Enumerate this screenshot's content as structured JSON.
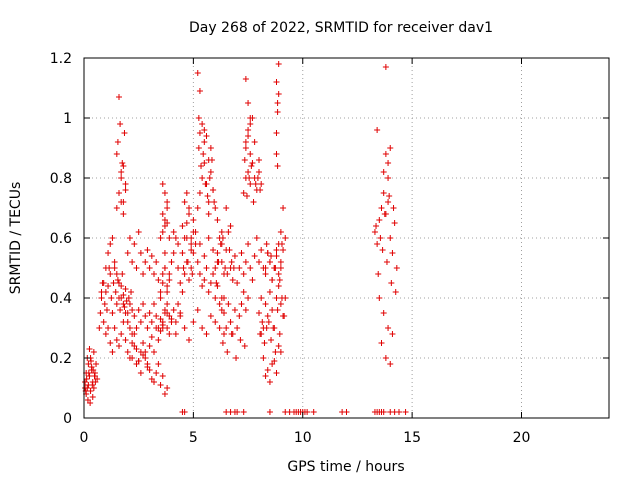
{
  "chart_data": {
    "type": "scatter",
    "title": "Day 268 of 2022, SRMTID for receiver dav1",
    "xlabel": "GPS time / hours",
    "ylabel": "SRMTID / TECUs",
    "xlim": [
      0,
      24
    ],
    "ylim": [
      0,
      1.2
    ],
    "xticks": [
      0,
      5,
      10,
      15,
      20
    ],
    "xtick_labels": [
      "0",
      "5",
      "10",
      "15",
      "20"
    ],
    "yticks": [
      0,
      0.2,
      0.4,
      0.6,
      0.8,
      1.0,
      1.2
    ],
    "ytick_labels": [
      "0",
      "0.2",
      "0.4",
      "0.6",
      "0.8",
      "1",
      "1.2"
    ],
    "grid": true,
    "marker": "plus",
    "color": "#e00000",
    "series": [
      {
        "name": "SRMTID",
        "x": [
          0.05,
          0.1,
          0.15,
          0.2,
          0.25,
          0.3,
          0.35,
          0.4,
          0.45,
          0.5,
          0.55,
          0.6,
          0.1,
          0.2,
          0.3,
          0.4,
          0.5,
          0.15,
          0.25,
          0.35,
          0.45,
          0.05,
          0.12,
          0.22,
          0.32,
          0.42,
          0.52,
          0.08,
          0.18,
          0.28,
          0.38,
          0.48,
          0.7,
          0.75,
          0.8,
          0.85,
          0.9,
          0.95,
          1.0,
          1.05,
          1.1,
          1.15,
          1.2,
          1.25,
          1.3,
          1.35,
          1.4,
          1.45,
          1.5,
          1.55,
          1.6,
          1.65,
          1.7,
          1.75,
          1.8,
          1.85,
          1.9,
          1.95,
          2.0,
          2.05,
          2.1,
          2.15,
          2.2,
          0.8,
          0.9,
          1.0,
          1.1,
          1.2,
          1.3,
          1.4,
          1.5,
          1.6,
          1.7,
          1.8,
          1.9,
          2.0,
          2.1,
          2.2,
          2.3,
          2.4,
          2.5,
          2.6,
          2.7,
          2.8,
          2.9,
          3.0,
          3.1,
          3.2,
          3.3,
          3.4,
          3.5,
          3.6,
          3.7,
          3.8,
          3.9,
          1.0,
          1.1,
          1.2,
          1.3,
          1.4,
          1.5,
          1.6,
          1.7,
          1.8,
          1.9,
          2.0,
          2.1,
          2.2,
          2.3,
          2.4,
          2.5,
          2.6,
          2.7,
          2.8,
          2.9,
          3.0,
          3.1,
          3.2,
          3.3,
          3.4,
          3.5,
          3.6,
          3.7,
          3.8,
          3.9,
          4.0,
          4.1,
          4.2,
          4.3,
          4.4,
          1.5,
          1.6,
          1.7,
          1.8,
          1.9,
          1.5,
          1.7,
          1.8,
          1.9,
          1.55,
          1.65,
          1.75,
          1.85,
          1.6,
          1.8,
          1.7,
          2.0,
          2.1,
          2.2,
          2.3,
          2.4,
          2.5,
          2.6,
          2.7,
          2.8,
          2.9,
          3.0,
          3.1,
          3.2,
          3.3,
          3.4,
          3.5,
          3.6,
          3.7,
          3.8,
          3.9,
          2.2,
          2.4,
          2.6,
          2.8,
          3.0,
          3.2,
          3.4,
          3.6,
          3.8,
          2.3,
          2.5,
          2.7,
          2.9,
          3.1,
          3.3,
          3.5,
          3.7,
          3.5,
          3.6,
          3.7,
          3.8,
          3.9,
          4.0,
          4.1,
          4.2,
          4.3,
          4.4,
          4.5,
          4.6,
          4.7,
          4.8,
          4.9,
          5.0,
          5.1,
          5.2,
          5.3,
          5.4,
          5.5,
          5.6,
          5.7,
          5.8,
          5.9,
          6.0,
          6.1,
          6.2,
          6.3,
          6.4,
          3.6,
          3.8,
          4.0,
          4.2,
          4.4,
          4.6,
          4.8,
          5.0,
          5.2,
          5.4,
          5.6,
          5.8,
          6.0,
          6.2,
          6.4,
          3.7,
          3.9,
          4.1,
          4.3,
          4.5,
          4.7,
          4.9,
          5.1,
          5.3,
          5.5,
          5.7,
          5.9,
          6.1,
          6.3,
          3.6,
          3.7,
          3.8,
          3.7,
          3.6,
          3.8,
          3.7,
          3.5,
          3.6,
          3.8,
          4.5,
          4.6,
          4.7,
          4.8,
          4.9,
          5.0,
          4.6,
          4.8,
          5.0,
          4.7,
          4.9,
          4.55,
          4.75,
          4.95,
          5.2,
          5.3,
          5.4,
          5.5,
          5.6,
          5.7,
          5.8,
          5.9,
          6.0,
          5.25,
          5.35,
          5.45,
          5.55,
          5.65,
          5.75,
          5.85,
          5.95,
          5.3,
          5.5,
          5.7,
          5.9,
          5.2,
          5.3,
          5.25,
          5.4,
          5.6,
          5.8,
          5.5,
          5.7,
          6.0,
          6.1,
          6.2,
          6.3,
          6.4,
          6.5,
          6.6,
          6.7,
          6.8,
          6.9,
          6.05,
          6.15,
          6.25,
          6.35,
          6.45,
          6.55,
          6.65,
          6.75,
          6.85,
          6.1,
          6.3,
          6.5,
          6.7,
          6.3,
          6.4,
          6.5,
          6.6,
          6.7,
          6.8,
          6.9,
          7.0,
          7.1,
          7.2,
          7.3,
          7.4,
          7.5,
          6.35,
          6.55,
          6.75,
          6.95,
          7.15,
          7.35,
          7.0,
          7.1,
          7.2,
          7.3,
          7.4,
          7.5,
          7.6,
          7.7,
          7.8,
          7.9,
          8.0,
          8.1,
          8.2,
          8.3,
          8.4,
          8.5,
          8.6,
          8.7,
          8.8,
          8.9,
          9.0,
          9.1,
          9.2,
          7.3,
          7.4,
          7.5,
          7.6,
          7.7,
          7.8,
          7.9,
          8.0,
          8.1,
          7.35,
          7.45,
          7.55,
          7.65,
          7.75,
          7.85,
          7.95,
          8.05,
          7.4,
          7.6,
          7.8,
          8.0,
          7.4,
          7.5,
          7.6,
          7.5,
          7.4,
          7.6,
          7.7,
          7.5,
          8.0,
          8.1,
          8.2,
          8.3,
          8.4,
          8.5,
          8.6,
          8.7,
          8.8,
          8.9,
          9.0,
          9.1,
          9.2,
          8.05,
          8.25,
          8.45,
          8.65,
          8.85,
          9.05,
          8.15,
          8.35,
          8.55,
          8.75,
          8.95,
          9.15,
          8.3,
          8.4,
          8.5,
          8.6,
          8.7,
          8.8,
          8.9,
          9.0,
          8.35,
          8.55,
          8.75,
          8.95,
          8.2,
          8.4,
          8.6,
          8.8,
          9.0,
          8.3,
          8.5,
          8.7,
          8.9,
          8.1,
          8.8,
          8.85,
          8.9,
          8.8,
          8.85,
          8.9,
          8.8,
          8.85,
          9.0,
          9.05,
          9.1,
          13.3,
          13.4,
          13.5,
          13.6,
          13.7,
          13.8,
          13.9,
          14.0,
          14.1,
          14.2,
          14.3,
          13.35,
          13.55,
          13.75,
          13.95,
          14.15,
          13.45,
          13.65,
          13.85,
          14.05,
          14.25,
          13.5,
          13.7,
          13.9,
          14.1,
          13.6,
          13.8,
          14.0,
          13.8,
          13.9,
          14.0,
          13.7,
          13.9,
          13.4,
          13.8,
          4.5,
          4.6,
          6.5,
          6.7,
          6.9,
          7.0,
          7.3,
          8.5,
          9.2,
          9.4,
          9.6,
          9.7,
          9.8,
          9.9,
          10.0,
          10.1,
          10.2,
          10.5,
          11.8,
          12.0,
          13.3,
          13.4,
          13.5,
          13.6,
          13.7,
          14.0,
          14.2,
          14.4,
          14.7
        ],
        "y": [
          0.12,
          0.15,
          0.1,
          0.18,
          0.14,
          0.2,
          0.16,
          0.12,
          0.22,
          0.15,
          0.18,
          0.13,
          0.08,
          0.11,
          0.09,
          0.07,
          0.14,
          0.2,
          0.23,
          0.17,
          0.1,
          0.1,
          0.13,
          0.15,
          0.19,
          0.16,
          0.12,
          0.09,
          0.06,
          0.05,
          0.11,
          0.14,
          0.3,
          0.35,
          0.4,
          0.45,
          0.32,
          0.38,
          0.42,
          0.36,
          0.44,
          0.5,
          0.48,
          0.4,
          0.35,
          0.45,
          0.5,
          0.42,
          0.38,
          0.46,
          0.4,
          0.36,
          0.44,
          0.48,
          0.41,
          0.37,
          0.43,
          0.39,
          0.35,
          0.4,
          0.38,
          0.42,
          0.36,
          0.42,
          0.45,
          0.5,
          0.55,
          0.58,
          0.6,
          0.52,
          0.48,
          0.45,
          0.4,
          0.38,
          0.35,
          0.32,
          0.3,
          0.28,
          0.34,
          0.3,
          0.36,
          0.32,
          0.38,
          0.34,
          0.3,
          0.35,
          0.32,
          0.38,
          0.34,
          0.3,
          0.33,
          0.31,
          0.36,
          0.38,
          0.34,
          0.28,
          0.3,
          0.25,
          0.22,
          0.3,
          0.26,
          0.24,
          0.28,
          0.32,
          0.26,
          0.22,
          0.2,
          0.25,
          0.28,
          0.23,
          0.19,
          0.22,
          0.25,
          0.2,
          0.18,
          0.24,
          0.27,
          0.22,
          0.3,
          0.26,
          0.29,
          0.32,
          0.35,
          0.3,
          0.28,
          0.33,
          0.36,
          0.32,
          0.38,
          0.35,
          0.7,
          0.75,
          0.8,
          0.72,
          0.78,
          0.88,
          0.82,
          0.68,
          0.76,
          0.92,
          0.98,
          0.85,
          0.95,
          1.07,
          0.84,
          0.72,
          0.55,
          0.6,
          0.52,
          0.58,
          0.5,
          0.62,
          0.55,
          0.48,
          0.52,
          0.56,
          0.5,
          0.54,
          0.48,
          0.52,
          0.46,
          0.42,
          0.48,
          0.5,
          0.44,
          0.46,
          0.2,
          0.18,
          0.15,
          0.22,
          0.16,
          0.12,
          0.18,
          0.14,
          0.1,
          0.24,
          0.19,
          0.21,
          0.17,
          0.13,
          0.15,
          0.11,
          0.08,
          0.4,
          0.45,
          0.5,
          0.42,
          0.48,
          0.52,
          0.55,
          0.6,
          0.5,
          0.45,
          0.42,
          0.48,
          0.52,
          0.46,
          0.5,
          0.55,
          0.58,
          0.52,
          0.48,
          0.44,
          0.46,
          0.5,
          0.42,
          0.45,
          0.48,
          0.4,
          0.44,
          0.38,
          0.36,
          0.4,
          0.3,
          0.35,
          0.32,
          0.28,
          0.34,
          0.3,
          0.26,
          0.32,
          0.36,
          0.3,
          0.28,
          0.34,
          0.32,
          0.3,
          0.28,
          0.55,
          0.6,
          0.62,
          0.58,
          0.64,
          0.6,
          0.56,
          0.62,
          0.58,
          0.54,
          0.6,
          0.56,
          0.52,
          0.58,
          0.62,
          0.66,
          0.7,
          0.75,
          0.68,
          0.72,
          0.64,
          0.6,
          0.78,
          0.65,
          0.55,
          0.6,
          0.65,
          0.7,
          0.58,
          0.62,
          0.72,
          0.68,
          0.66,
          0.75,
          0.6,
          0.5,
          0.52,
          0.48,
          0.7,
          0.75,
          0.8,
          0.85,
          0.78,
          0.72,
          0.82,
          0.76,
          0.7,
          0.9,
          0.84,
          0.88,
          0.78,
          0.74,
          0.8,
          0.86,
          0.72,
          0.95,
          0.92,
          0.68,
          0.76,
          1.15,
          1.09,
          1.0,
          0.98,
          0.94,
          0.9,
          0.96,
          0.86,
          0.5,
          0.55,
          0.6,
          0.52,
          0.48,
          0.56,
          0.62,
          0.5,
          0.46,
          0.54,
          0.45,
          0.52,
          0.58,
          0.6,
          0.5,
          0.48,
          0.56,
          0.52,
          0.5,
          0.66,
          0.62,
          0.7,
          0.64,
          0.4,
          0.35,
          0.3,
          0.38,
          0.32,
          0.28,
          0.36,
          0.3,
          0.34,
          0.38,
          0.42,
          0.36,
          0.4,
          0.25,
          0.22,
          0.28,
          0.2,
          0.26,
          0.24,
          0.45,
          0.5,
          0.55,
          0.48,
          0.52,
          0.58,
          0.5,
          0.46,
          0.54,
          0.6,
          0.52,
          0.56,
          0.5,
          0.48,
          0.55,
          0.52,
          0.46,
          0.5,
          0.54,
          0.58,
          0.5,
          0.56,
          0.6,
          0.75,
          0.8,
          0.82,
          0.78,
          0.85,
          0.8,
          0.76,
          0.82,
          0.78,
          0.86,
          0.74,
          0.8,
          0.84,
          0.72,
          0.78,
          0.8,
          0.76,
          0.9,
          0.88,
          0.92,
          0.86,
          1.13,
          1.05,
          1.0,
          0.96,
          0.92,
          0.98,
          1.0,
          0.94,
          0.35,
          0.4,
          0.3,
          0.38,
          0.34,
          0.42,
          0.36,
          0.3,
          0.4,
          0.44,
          0.38,
          0.34,
          0.4,
          0.28,
          0.25,
          0.32,
          0.3,
          0.36,
          0.4,
          0.32,
          0.3,
          0.26,
          0.22,
          0.28,
          0.34,
          0.5,
          0.55,
          0.52,
          0.46,
          0.5,
          0.56,
          0.48,
          0.52,
          0.58,
          0.54,
          0.5,
          0.46,
          0.2,
          0.16,
          0.18,
          0.15,
          0.22,
          0.14,
          0.12,
          0.19,
          0.24,
          0.28,
          0.95,
          1.02,
          1.08,
          1.12,
          1.05,
          1.18,
          0.88,
          0.84,
          0.62,
          0.58,
          0.7,
          0.62,
          0.58,
          0.66,
          0.7,
          0.75,
          0.68,
          0.72,
          0.6,
          0.55,
          0.65,
          0.5,
          0.64,
          0.6,
          0.68,
          0.74,
          0.7,
          0.48,
          0.56,
          0.52,
          0.45,
          0.42,
          0.4,
          0.35,
          0.3,
          0.28,
          0.25,
          0.2,
          0.18,
          0.88,
          0.85,
          0.9,
          0.82,
          0.8,
          0.96,
          1.17,
          0.02,
          0.02,
          0.02,
          0.02,
          0.02,
          0.02,
          0.02,
          0.02,
          0.02,
          0.02,
          0.02,
          0.02,
          0.02,
          0.02,
          0.02,
          0.02,
          0.02,
          0.02,
          0.02,
          0.02,
          0.02,
          0.02,
          0.02,
          0.02,
          0.02,
          0.02,
          0.02,
          0.02,
          0.02
        ]
      }
    ]
  }
}
